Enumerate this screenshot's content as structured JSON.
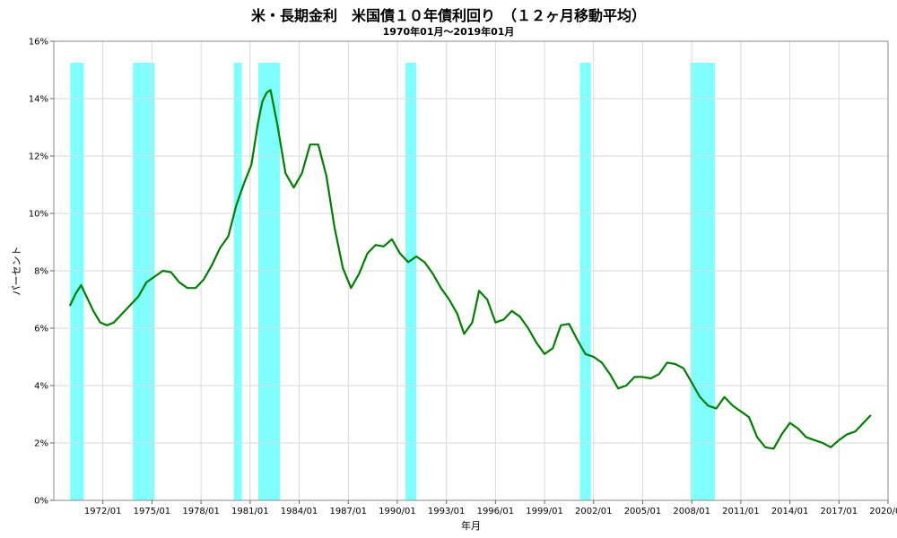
{
  "chart_data": {
    "type": "line",
    "title": "米・長期金利　米国債１０年債利回り　（１２ヶ月移動平均）",
    "subtitle": "1970年01月～2019年01月",
    "xlabel": "年月",
    "ylabel": "パーセント",
    "xlim": [
      "1969/01",
      "2020/01"
    ],
    "ylim": [
      0,
      16
    ],
    "y_ticks": [
      "0%",
      "2%",
      "4%",
      "6%",
      "8%",
      "10%",
      "12%",
      "14%",
      "16%"
    ],
    "x_ticks": [
      "1972/01",
      "1975/01",
      "1978/01",
      "1981/01",
      "1984/01",
      "1987/01",
      "1990/01",
      "1993/01",
      "1996/01",
      "1999/01",
      "2002/01",
      "2005/01",
      "2008/01",
      "2011/01",
      "2014/01",
      "2017/01",
      "2020/01"
    ],
    "grid": true,
    "shaded_periods": [
      [
        "1970/01",
        "1970/11"
      ],
      [
        "1973/11",
        "1975/03"
      ],
      [
        "1980/01",
        "1980/07"
      ],
      [
        "1981/07",
        "1982/11"
      ],
      [
        "1990/07",
        "1991/03"
      ],
      [
        "2001/03",
        "2001/11"
      ],
      [
        "2007/12",
        "2009/06"
      ]
    ],
    "series": [
      {
        "color": "#008000",
        "x": [
          "1970/01",
          "1970/05",
          "1970/09",
          "1971/02",
          "1971/06",
          "1971/11",
          "1972/04",
          "1972/09",
          "1973/03",
          "1973/09",
          "1974/03",
          "1974/09",
          "1975/03",
          "1975/09",
          "1976/03",
          "1976/09",
          "1977/03",
          "1977/09",
          "1978/03",
          "1978/09",
          "1979/03",
          "1979/09",
          "1980/03",
          "1980/09",
          "1981/02",
          "1981/07",
          "1981/10",
          "1982/01",
          "1982/04",
          "1982/09",
          "1983/03",
          "1983/09",
          "1984/03",
          "1984/09",
          "1985/03",
          "1985/09",
          "1986/03",
          "1986/09",
          "1987/03",
          "1987/09",
          "1988/03",
          "1988/09",
          "1989/03",
          "1989/09",
          "1990/03",
          "1990/09",
          "1991/03",
          "1991/09",
          "1992/03",
          "1992/09",
          "1993/03",
          "1993/09",
          "1994/02",
          "1994/08",
          "1995/01",
          "1995/07",
          "1996/01",
          "1996/07",
          "1997/01",
          "1997/07",
          "1998/01",
          "1998/07",
          "1999/01",
          "1999/07",
          "2000/01",
          "2000/07",
          "2001/01",
          "2001/07",
          "2002/01",
          "2002/07",
          "2003/01",
          "2003/07",
          "2004/01",
          "2004/07",
          "2005/01",
          "2005/07",
          "2006/01",
          "2006/07",
          "2007/01",
          "2007/07",
          "2008/01",
          "2008/07",
          "2009/01",
          "2009/07",
          "2010/01",
          "2010/07",
          "2011/01",
          "2011/07",
          "2012/01",
          "2012/07",
          "2013/01",
          "2013/07",
          "2014/01",
          "2014/07",
          "2015/01",
          "2015/07",
          "2016/01",
          "2016/07",
          "2017/01",
          "2017/07",
          "2018/01",
          "2018/07",
          "2018/12"
        ],
        "y": [
          6.8,
          7.2,
          7.5,
          7.0,
          6.6,
          6.2,
          6.1,
          6.2,
          6.5,
          6.8,
          7.1,
          7.6,
          7.8,
          8.0,
          7.95,
          7.6,
          7.4,
          7.4,
          7.7,
          8.2,
          8.8,
          9.2,
          10.3,
          11.1,
          11.7,
          13.2,
          13.9,
          14.2,
          14.3,
          13.1,
          11.4,
          10.9,
          11.4,
          12.4,
          12.4,
          11.3,
          9.5,
          8.1,
          7.4,
          7.9,
          8.6,
          8.9,
          8.85,
          9.1,
          8.6,
          8.3,
          8.5,
          8.3,
          7.9,
          7.4,
          7.0,
          6.5,
          5.8,
          6.2,
          7.3,
          7.0,
          6.2,
          6.3,
          6.6,
          6.4,
          6.0,
          5.5,
          5.1,
          5.3,
          6.1,
          6.15,
          5.6,
          5.1,
          5.0,
          4.8,
          4.4,
          3.9,
          4.0,
          4.3,
          4.3,
          4.25,
          4.4,
          4.8,
          4.75,
          4.6,
          4.1,
          3.6,
          3.3,
          3.2,
          3.6,
          3.3,
          3.1,
          2.9,
          2.2,
          1.85,
          1.8,
          2.3,
          2.7,
          2.5,
          2.2,
          2.1,
          2.0,
          1.85,
          2.1,
          2.3,
          2.4,
          2.7,
          2.95
        ]
      }
    ]
  }
}
